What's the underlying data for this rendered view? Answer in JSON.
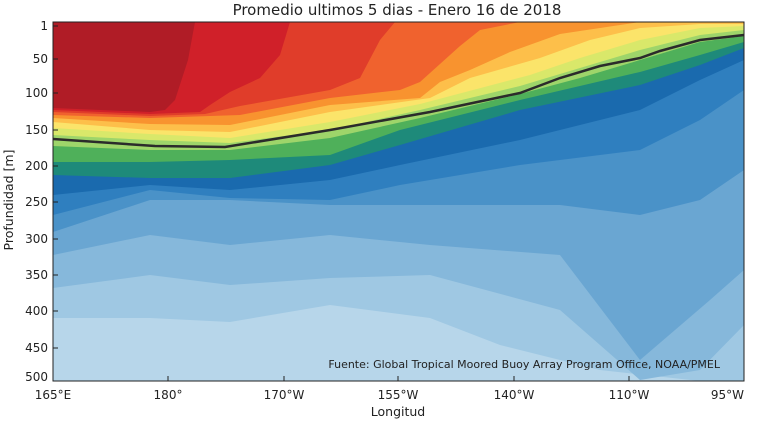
{
  "chart_data": {
    "type": "contour",
    "title": "Promedio ultimos 5 dias - Enero 16 de 2018",
    "xlabel": "Longitud",
    "ylabel": "Profundidad [m]",
    "x_tick_labels": [
      "165°E",
      "180°",
      "170°W",
      "155°W",
      "140°W",
      "110°W",
      "95°W"
    ],
    "y_tick_labels": [
      "1",
      "50",
      "100",
      "150",
      "200",
      "250",
      "300",
      "350",
      "400",
      "450",
      "500"
    ],
    "ylim": [
      1,
      500
    ],
    "y_reversed": true,
    "grid": false,
    "annotation": "Fuente: Global Tropical Moored Buoy Array Program Office, NOAA/PMEL",
    "levels": [
      {
        "color": "#b01c26"
      },
      {
        "color": "#d02029"
      },
      {
        "color": "#e03d2a"
      },
      {
        "color": "#f0622e"
      },
      {
        "color": "#f8932f"
      },
      {
        "color": "#fdbf4a"
      },
      {
        "color": "#fbe46a"
      },
      {
        "color": "#d9e86a"
      },
      {
        "color": "#9ed56a"
      },
      {
        "color": "#4fb05a"
      },
      {
        "color": "#1e8a7a"
      },
      {
        "color": "#1a6aae"
      },
      {
        "color": "#2f7fbf"
      },
      {
        "color": "#4a92c8"
      },
      {
        "color": "#6aa6d2"
      },
      {
        "color": "#86b8db"
      },
      {
        "color": "#9fc8e3"
      },
      {
        "color": "#b7d6ea"
      },
      {
        "color": "#cfe3f1"
      }
    ]
  }
}
